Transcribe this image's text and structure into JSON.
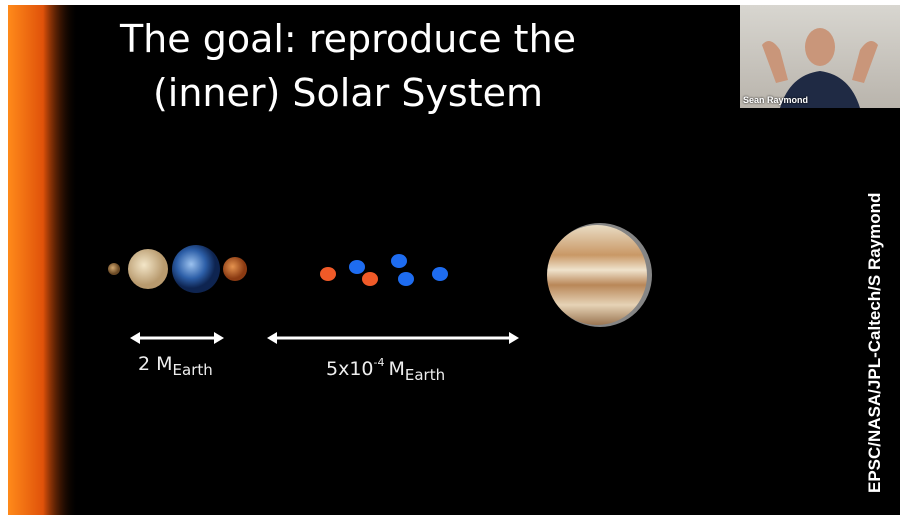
{
  "slide": {
    "title": [
      "The goal: reproduce the",
      "(inner) Solar System"
    ],
    "labels": [
      {
        "main": "2 M",
        "sub": "Earth"
      },
      {
        "base": "5x10",
        "sup": "-4",
        "main": "M",
        "sub": "Earth"
      }
    ],
    "credit": "EPSC/NASA/JPL-Caltech/S Raymond"
  },
  "video": {
    "speaker": "Sean Raymond"
  }
}
